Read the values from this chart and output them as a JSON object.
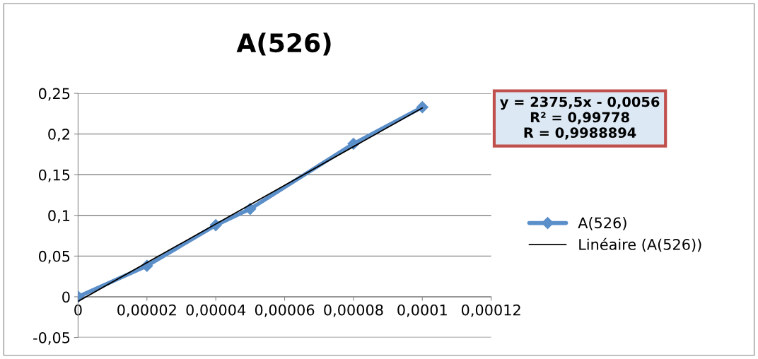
{
  "chart_data": {
    "type": "line",
    "title": "A(526)",
    "xlim": [
      0,
      0.00012
    ],
    "ylim": [
      -0.05,
      0.25
    ],
    "xticks": [
      0,
      {
        "value": 2e-05,
        "label": "0,00002"
      },
      {
        "value": 4e-05,
        "label": "0,00004"
      },
      {
        "value": 6e-05,
        "label": "0,00006"
      },
      {
        "value": 8e-05,
        "label": "0,00008"
      },
      {
        "value": 0.0001,
        "label": "0,0001"
      },
      {
        "value": 0.00012,
        "label": "0,00012"
      }
    ],
    "yticks": [
      {
        "value": -0.05,
        "label": "-0,05"
      },
      0,
      {
        "value": 0.05,
        "label": "0,05"
      },
      {
        "value": 0.1,
        "label": "0,1"
      },
      {
        "value": 0.15,
        "label": "0,15"
      },
      {
        "value": 0.2,
        "label": "0,2"
      },
      {
        "value": 0.25,
        "label": "0,25"
      }
    ],
    "grid": "y",
    "legend": "right",
    "series": [
      {
        "name": "A(526)",
        "color": "#5b8fc9",
        "marker": "diamond",
        "x": [
          0,
          2e-05,
          4e-05,
          5e-05,
          8e-05,
          0.0001
        ],
        "values": [
          0,
          0.038,
          0.088,
          0.108,
          0.188,
          0.233
        ]
      },
      {
        "name": "Linéaire (A(526))",
        "type": "line",
        "color": "#000000",
        "marker": "none",
        "x": [
          0,
          0.0001
        ],
        "values": [
          -0.0056,
          0.232
        ]
      }
    ],
    "annotations": [
      "y = 2375,5x - 0,0056\nR² = 0,99778\nR = 0,9988894"
    ]
  }
}
